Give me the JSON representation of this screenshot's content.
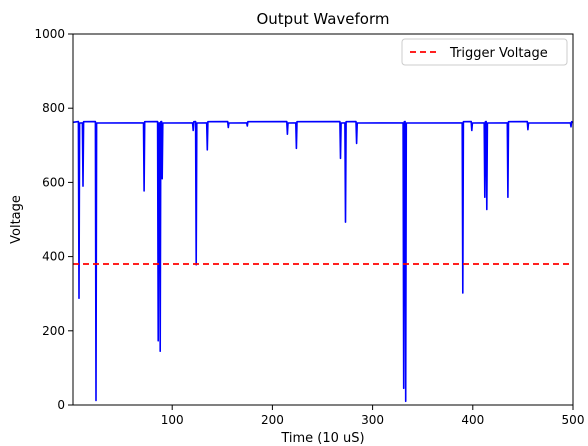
{
  "chart_data": {
    "type": "line",
    "title": "Output Waveform",
    "xlabel": "Time (10 uS)",
    "ylabel": "Voltage",
    "xlim": [
      1,
      500
    ],
    "ylim": [
      0,
      1000
    ],
    "xticks": [
      100,
      200,
      300,
      400,
      500
    ],
    "yticks": [
      0,
      200,
      400,
      600,
      800,
      1000
    ],
    "grid": false,
    "legend_position": "top-right",
    "baseline": 762,
    "series": [
      {
        "name": "",
        "color": "#0000ff",
        "style": "solid",
        "dips": [
          {
            "x": 7,
            "y": 288
          },
          {
            "x": 11,
            "y": 590
          },
          {
            "x": 24,
            "y": 12
          },
          {
            "x": 72,
            "y": 577
          },
          {
            "x": 86,
            "y": 173
          },
          {
            "x": 88,
            "y": 145
          },
          {
            "x": 90,
            "y": 610
          },
          {
            "x": 121,
            "y": 740
          },
          {
            "x": 124,
            "y": 378
          },
          {
            "x": 135,
            "y": 688
          },
          {
            "x": 156,
            "y": 748
          },
          {
            "x": 175,
            "y": 752
          },
          {
            "x": 215,
            "y": 730
          },
          {
            "x": 224,
            "y": 692
          },
          {
            "x": 268,
            "y": 665
          },
          {
            "x": 273,
            "y": 493
          },
          {
            "x": 284,
            "y": 705
          },
          {
            "x": 331,
            "y": 45
          },
          {
            "x": 333,
            "y": 10
          },
          {
            "x": 390,
            "y": 302
          },
          {
            "x": 399,
            "y": 740
          },
          {
            "x": 412,
            "y": 560
          },
          {
            "x": 414,
            "y": 527
          },
          {
            "x": 435,
            "y": 560
          },
          {
            "x": 455,
            "y": 742
          },
          {
            "x": 498,
            "y": 750
          }
        ]
      },
      {
        "name": "Trigger Voltage",
        "color": "#ff0000",
        "style": "dashed",
        "x": [
          1,
          500
        ],
        "y": [
          380,
          380
        ]
      }
    ]
  }
}
